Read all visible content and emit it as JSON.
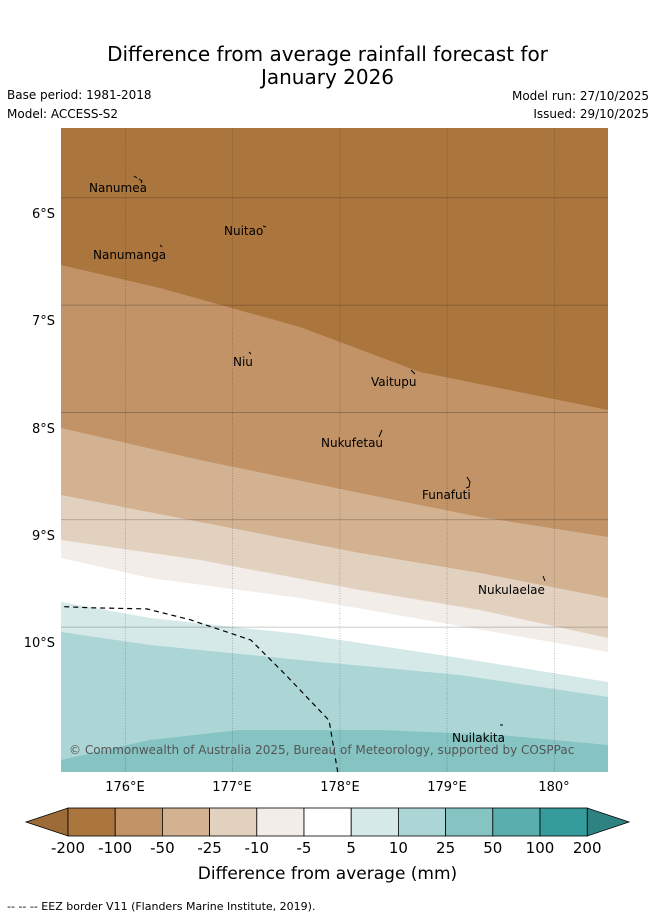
{
  "header": {
    "title_line1": "Difference from average rainfall forecast for",
    "title_line2": "January 2026",
    "base_period": "Base period: 1981-2018",
    "model": "Model: ACCESS-S2",
    "model_run": "Model run: 27/10/2025",
    "issued": "Issued: 29/10/2025"
  },
  "map": {
    "lon_range": [
      175.4,
      180.5
    ],
    "lat_range": [
      -5.35,
      -11.35
    ],
    "lon_ticks": [
      176,
      177,
      178,
      179,
      180
    ],
    "lon_tick_labels": [
      "176°E",
      "177°E",
      "178°E",
      "179°E",
      "180°"
    ],
    "lat_ticks": [
      -6,
      -7,
      -8,
      -9,
      -10
    ],
    "lat_tick_labels": [
      "6°S",
      "7°S",
      "8°S",
      "9°S",
      "10°S"
    ],
    "islands": [
      {
        "name": "Nanumea",
        "lon": 176.1,
        "lat": -5.67
      },
      {
        "name": "Nuitao",
        "lon": 177.3,
        "lat": -6.11
      },
      {
        "name": "Nanumanga",
        "lon": 176.32,
        "lat": -6.29
      },
      {
        "name": "Niu",
        "lon": 177.16,
        "lat": -7.32
      },
      {
        "name": "Vaitupu",
        "lon": 178.68,
        "lat": -7.48
      },
      {
        "name": "Nukufetau",
        "lon": 178.37,
        "lat": -8.02
      },
      {
        "name": "Funafuti",
        "lon": 179.2,
        "lat": -8.52
      },
      {
        "name": "Nukulaelae",
        "lon": 179.84,
        "lat": -9.38
      },
      {
        "name": "Nuilakita",
        "lon": 179.54,
        "lat": -10.72
      }
    ],
    "anomaly_bands": [
      {
        "category": "-100 to -200",
        "color": "#ab753e"
      },
      {
        "category": "-50 to -100",
        "color": "#c19367"
      },
      {
        "category": "-25 to -50",
        "color": "#d3b292"
      },
      {
        "category": "-10 to -25",
        "color": "#e3d1c0"
      },
      {
        "category": "-5 to -10",
        "color": "#f2ede8"
      },
      {
        "category": "-5 to 5",
        "color": "#ffffff"
      },
      {
        "category": "5 to 10",
        "color": "#d4e9e8"
      },
      {
        "category": "10 to 25",
        "color": "#acd6d5"
      },
      {
        "category": "25 to 50",
        "color": "#85c4c3"
      }
    ],
    "eez_border": [
      [
        175.43,
        -9.81
      ],
      [
        175.68,
        -9.82
      ],
      [
        176.2,
        -9.83
      ],
      [
        176.6,
        -9.93
      ],
      [
        177.17,
        -10.12
      ],
      [
        177.5,
        -10.45
      ],
      [
        177.9,
        -10.87
      ],
      [
        177.98,
        -11.35
      ]
    ],
    "copyright": "© Commonwealth of Australia 2025, Bureau of Meteorology, supported by COSPPac"
  },
  "colorbar": {
    "colors": [
      "#ab753e",
      "#c19367",
      "#d3b292",
      "#e3d1c0",
      "#f2ede8",
      "#ffffff",
      "#d4e9e8",
      "#acd6d5",
      "#85c4c3",
      "#5baeae",
      "#369c9b"
    ],
    "under_color": "#9c6b38",
    "over_color": "#2f8282",
    "labels": [
      "-200",
      "-100",
      "-50",
      "-25",
      "-10",
      "-5",
      "5",
      "10",
      "25",
      "50",
      "100",
      "200"
    ],
    "title": "Difference from average (mm)"
  },
  "footer": {
    "legend": "-- -- -- EEZ border V11 (Flanders Marine Institute, 2019)."
  }
}
